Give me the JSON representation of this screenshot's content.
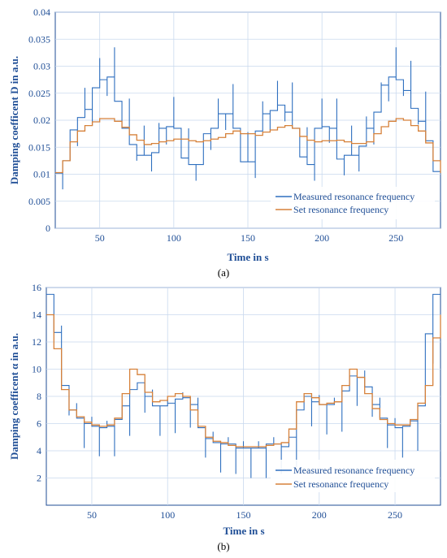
{
  "chart_data": [
    {
      "type": "line",
      "panel_label": "(a)",
      "xlabel": "Time in s",
      "ylabel": "Damping coefficent D in a.u.",
      "xlim": [
        20,
        280
      ],
      "ylim": [
        0,
        0.04
      ],
      "xticks": [
        50,
        100,
        150,
        200,
        250
      ],
      "yticks": [
        0,
        0.005,
        0.01,
        0.015,
        0.02,
        0.025,
        0.03,
        0.035,
        0.04
      ],
      "ytick_labels": [
        "0",
        "0.005",
        "0.01",
        "0.015",
        "0.02",
        "0.025",
        "0.03",
        "0.035",
        "0.04"
      ],
      "grid": true,
      "legend_position": "bottom-right",
      "series": [
        {
          "name": "Measured resonance frequency",
          "color": "#2e6fbf",
          "style": "measured",
          "steps": [
            [
              20,
              0.0102
            ],
            [
              25,
              0.0125
            ],
            [
              30,
              0.0182
            ],
            [
              35,
              0.0205
            ],
            [
              40,
              0.022
            ],
            [
              45,
              0.026
            ],
            [
              50,
              0.0275
            ],
            [
              55,
              0.028
            ],
            [
              60,
              0.0235
            ],
            [
              65,
              0.0185
            ],
            [
              70,
              0.0155
            ],
            [
              75,
              0.0135
            ],
            [
              80,
              0.0135
            ],
            [
              85,
              0.014
            ],
            [
              90,
              0.0185
            ],
            [
              95,
              0.0188
            ],
            [
              100,
              0.0185
            ],
            [
              105,
              0.013
            ],
            [
              110,
              0.0118
            ],
            [
              115,
              0.0118
            ],
            [
              120,
              0.0175
            ],
            [
              125,
              0.0185
            ],
            [
              130,
              0.0212
            ],
            [
              135,
              0.0212
            ],
            [
              140,
              0.0185
            ],
            [
              145,
              0.0123
            ],
            [
              150,
              0.0123
            ],
            [
              155,
              0.018
            ],
            [
              160,
              0.0212
            ],
            [
              165,
              0.0218
            ],
            [
              170,
              0.0228
            ],
            [
              175,
              0.0215
            ],
            [
              180,
              0.0185
            ],
            [
              185,
              0.0132
            ],
            [
              190,
              0.0118
            ],
            [
              195,
              0.0185
            ],
            [
              200,
              0.0188
            ],
            [
              205,
              0.0185
            ],
            [
              210,
              0.0128
            ],
            [
              215,
              0.0135
            ],
            [
              220,
              0.0135
            ],
            [
              225,
              0.0152
            ],
            [
              230,
              0.0185
            ],
            [
              235,
              0.0215
            ],
            [
              240,
              0.0265
            ],
            [
              245,
              0.028
            ],
            [
              250,
              0.0275
            ],
            [
              255,
              0.0255
            ],
            [
              260,
              0.0222
            ],
            [
              265,
              0.0198
            ],
            [
              270,
              0.0162
            ],
            [
              275,
              0.0105
            ],
            [
              280,
              0.0102
            ]
          ],
          "spike_up": 0.0055,
          "spike_down": 0.003
        },
        {
          "name": "Set resonance frequency",
          "color": "#d6813a",
          "style": "set",
          "steps": [
            [
              20,
              0.0103
            ],
            [
              25,
              0.0125
            ],
            [
              30,
              0.016
            ],
            [
              35,
              0.018
            ],
            [
              40,
              0.019
            ],
            [
              45,
              0.0197
            ],
            [
              50,
              0.0203
            ],
            [
              55,
              0.0203
            ],
            [
              60,
              0.0198
            ],
            [
              65,
              0.0187
            ],
            [
              70,
              0.0173
            ],
            [
              75,
              0.0163
            ],
            [
              80,
              0.0155
            ],
            [
              85,
              0.0157
            ],
            [
              90,
              0.016
            ],
            [
              95,
              0.0162
            ],
            [
              100,
              0.0165
            ],
            [
              105,
              0.0165
            ],
            [
              110,
              0.0162
            ],
            [
              115,
              0.016
            ],
            [
              120,
              0.0162
            ],
            [
              125,
              0.0165
            ],
            [
              130,
              0.0168
            ],
            [
              135,
              0.0175
            ],
            [
              140,
              0.018
            ],
            [
              145,
              0.0175
            ],
            [
              150,
              0.0175
            ],
            [
              155,
              0.0172
            ],
            [
              160,
              0.0178
            ],
            [
              165,
              0.0182
            ],
            [
              170,
              0.0187
            ],
            [
              175,
              0.019
            ],
            [
              180,
              0.0185
            ],
            [
              185,
              0.017
            ],
            [
              190,
              0.0163
            ],
            [
              195,
              0.016
            ],
            [
              200,
              0.0162
            ],
            [
              205,
              0.0162
            ],
            [
              210,
              0.0163
            ],
            [
              215,
              0.016
            ],
            [
              220,
              0.0157
            ],
            [
              225,
              0.0157
            ],
            [
              230,
              0.016
            ],
            [
              235,
              0.0175
            ],
            [
              240,
              0.0188
            ],
            [
              245,
              0.0198
            ],
            [
              250,
              0.0203
            ],
            [
              255,
              0.02
            ],
            [
              260,
              0.019
            ],
            [
              265,
              0.018
            ],
            [
              270,
              0.0158
            ],
            [
              275,
              0.0125
            ],
            [
              280,
              0.0102
            ]
          ]
        }
      ]
    },
    {
      "type": "line",
      "panel_label": "(b)",
      "xlabel": "Time in s",
      "ylabel": "Damping coefficent α in a.u.",
      "xlim": [
        20,
        280
      ],
      "ylim": [
        0,
        16
      ],
      "xticks": [
        50,
        100,
        150,
        200,
        250
      ],
      "yticks": [
        2,
        4,
        6,
        8,
        10,
        12,
        14,
        16
      ],
      "ytick_labels": [
        "2",
        "4",
        "6",
        "8",
        "10",
        "12",
        "14",
        "16"
      ],
      "grid": true,
      "legend_position": "bottom-right",
      "series": [
        {
          "name": "Measured resonance frequency",
          "color": "#2e6fbf",
          "style": "measured",
          "steps": [
            [
              20,
              15.5
            ],
            [
              25,
              12.7
            ],
            [
              30,
              8.8
            ],
            [
              35,
              7.0
            ],
            [
              40,
              6.4
            ],
            [
              45,
              6.0
            ],
            [
              50,
              5.8
            ],
            [
              55,
              5.7
            ],
            [
              60,
              5.8
            ],
            [
              65,
              6.3
            ],
            [
              70,
              7.3
            ],
            [
              75,
              8.5
            ],
            [
              80,
              9.0
            ],
            [
              85,
              8.0
            ],
            [
              90,
              7.3
            ],
            [
              95,
              7.3
            ],
            [
              100,
              7.5
            ],
            [
              105,
              7.8
            ],
            [
              110,
              7.9
            ],
            [
              115,
              7.4
            ],
            [
              120,
              5.7
            ],
            [
              125,
              4.9
            ],
            [
              130,
              4.6
            ],
            [
              135,
              4.5
            ],
            [
              140,
              4.5
            ],
            [
              145,
              4.2
            ],
            [
              150,
              4.2
            ],
            [
              155,
              4.2
            ],
            [
              160,
              4.2
            ],
            [
              165,
              4.5
            ],
            [
              170,
              4.5
            ],
            [
              175,
              4.3
            ],
            [
              180,
              5.0
            ],
            [
              185,
              7.0
            ],
            [
              190,
              8.0
            ],
            [
              195,
              7.6
            ],
            [
              200,
              7.4
            ],
            [
              205,
              7.4
            ],
            [
              210,
              7.6
            ],
            [
              215,
              8.4
            ],
            [
              220,
              9.5
            ],
            [
              225,
              9.4
            ],
            [
              230,
              8.7
            ],
            [
              235,
              7.4
            ],
            [
              240,
              6.4
            ],
            [
              245,
              5.9
            ],
            [
              250,
              5.7
            ],
            [
              255,
              5.8
            ],
            [
              260,
              6.2
            ],
            [
              265,
              7.3
            ],
            [
              270,
              12.6
            ],
            [
              275,
              15.5
            ],
            [
              280,
              15.5
            ]
          ],
          "spike_up": 0.5,
          "spike_down": 2.2
        },
        {
          "name": "Set resonance frequency",
          "color": "#d6813a",
          "style": "set",
          "steps": [
            [
              20,
              14.0
            ],
            [
              25,
              11.5
            ],
            [
              30,
              8.5
            ],
            [
              35,
              7.0
            ],
            [
              40,
              6.5
            ],
            [
              45,
              6.1
            ],
            [
              50,
              5.9
            ],
            [
              55,
              5.8
            ],
            [
              60,
              5.9
            ],
            [
              65,
              6.4
            ],
            [
              70,
              8.2
            ],
            [
              75,
              10.0
            ],
            [
              80,
              9.6
            ],
            [
              85,
              8.3
            ],
            [
              90,
              7.6
            ],
            [
              95,
              7.7
            ],
            [
              100,
              8.0
            ],
            [
              105,
              8.2
            ],
            [
              110,
              8.0
            ],
            [
              115,
              7.0
            ],
            [
              120,
              5.8
            ],
            [
              125,
              5.0
            ],
            [
              130,
              4.7
            ],
            [
              135,
              4.6
            ],
            [
              140,
              4.4
            ],
            [
              145,
              4.3
            ],
            [
              150,
              4.3
            ],
            [
              155,
              4.3
            ],
            [
              160,
              4.3
            ],
            [
              165,
              4.4
            ],
            [
              170,
              4.5
            ],
            [
              175,
              4.6
            ],
            [
              180,
              5.6
            ],
            [
              185,
              7.6
            ],
            [
              190,
              8.2
            ],
            [
              195,
              7.9
            ],
            [
              200,
              7.4
            ],
            [
              205,
              7.5
            ],
            [
              210,
              7.6
            ],
            [
              215,
              8.8
            ],
            [
              220,
              10.0
            ],
            [
              225,
              9.4
            ],
            [
              230,
              8.2
            ],
            [
              235,
              7.1
            ],
            [
              240,
              6.3
            ],
            [
              245,
              6.0
            ],
            [
              250,
              5.9
            ],
            [
              255,
              5.9
            ],
            [
              260,
              6.3
            ],
            [
              265,
              7.5
            ],
            [
              270,
              8.8
            ],
            [
              275,
              12.3
            ],
            [
              280,
              14.0
            ]
          ]
        }
      ]
    }
  ]
}
